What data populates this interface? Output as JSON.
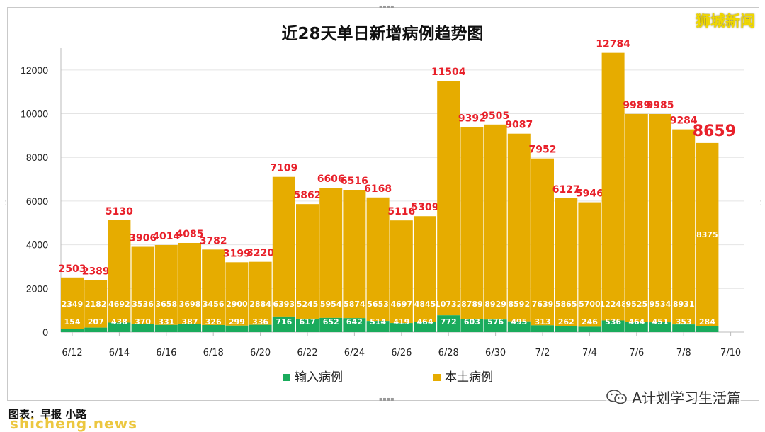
{
  "brand": "狮城新闻",
  "source_label": "图表：早报 小路",
  "watermark": "shicheng.news",
  "account": {
    "label": "A计划学习生活篇",
    "icon": "wechat-icon"
  },
  "colors": {
    "imported": "#1aab5c",
    "local": "#e6ac00",
    "total_label": "#e8202a",
    "inner_label": "#ffffff"
  },
  "chart_data": {
    "type": "bar",
    "stacked": true,
    "title": "近28天单日新增病例趋势图",
    "xlabel": "",
    "ylabel": "",
    "ylim": [
      0,
      13000
    ],
    "yticks": [
      0,
      2000,
      4000,
      6000,
      8000,
      10000,
      12000
    ],
    "grid": true,
    "legend_position": "bottom",
    "categories": [
      "6/12",
      "6/13",
      "6/14",
      "6/15",
      "6/16",
      "6/17",
      "6/18",
      "6/19",
      "6/20",
      "6/21",
      "6/22",
      "6/23",
      "6/24",
      "6/25",
      "6/26",
      "6/27",
      "6/28",
      "6/29",
      "6/30",
      "7/1",
      "7/2",
      "7/3",
      "7/4",
      "7/5",
      "7/6",
      "7/7",
      "7/8",
      "7/9"
    ],
    "xtick_labels": [
      "6/12",
      "6/14",
      "6/16",
      "6/18",
      "6/20",
      "6/22",
      "6/24",
      "6/26",
      "6/28",
      "6/30",
      "7/2",
      "7/4",
      "7/6",
      "7/8",
      "7/10"
    ],
    "series": [
      {
        "name": "输入病例",
        "values": [
          154,
          207,
          438,
          370,
          331,
          387,
          326,
          299,
          336,
          716,
          617,
          652,
          642,
          514,
          419,
          464,
          772,
          603,
          576,
          495,
          313,
          262,
          246,
          536,
          464,
          451,
          353,
          284
        ]
      },
      {
        "name": "本土病例",
        "values": [
          2349,
          2182,
          4692,
          3536,
          3658,
          3698,
          3456,
          2900,
          2884,
          6393,
          5245,
          5954,
          5874,
          5653,
          4697,
          4845,
          10732,
          8789,
          8929,
          8592,
          7639,
          5865,
          5700,
          12248,
          9525,
          9534,
          8931,
          8375
        ]
      }
    ],
    "totals": [
      2503,
      2389,
      5130,
      3906,
      4014,
      4085,
      3782,
      3199,
      3220,
      7109,
      5862,
      6606,
      6516,
      6168,
      5116,
      5309,
      11504,
      9392,
      9505,
      9087,
      7952,
      6127,
      5946,
      12784,
      9989,
      9985,
      9284,
      8659
    ],
    "highlight_last": true
  }
}
